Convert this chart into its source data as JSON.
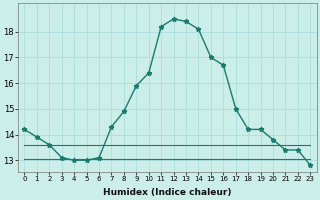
{
  "xlabel": "Humidex (Indice chaleur)",
  "background_color": "#cceee8",
  "grid_color": "#aadddd",
  "line_color": "#1a7a6e",
  "main_x": [
    0,
    1,
    2,
    3,
    4,
    5,
    6,
    7,
    8,
    9,
    10,
    11,
    12,
    13,
    14,
    15,
    16,
    17,
    18,
    19,
    20,
    21,
    22,
    23
  ],
  "main_y": [
    14.2,
    13.9,
    13.6,
    13.1,
    13.0,
    13.0,
    13.1,
    14.3,
    14.9,
    15.9,
    16.4,
    18.2,
    18.5,
    18.4,
    18.1,
    17.0,
    16.7,
    15.0,
    14.2,
    14.2,
    13.8,
    13.4,
    13.4,
    12.8
  ],
  "flat1_x": [
    0,
    1,
    2,
    3,
    4,
    5,
    6,
    7,
    8,
    9,
    10,
    11,
    12,
    13,
    14,
    15,
    16,
    17,
    18,
    19,
    20,
    21,
    22,
    23
  ],
  "flat1_y": [
    13.6,
    13.6,
    13.6,
    13.6,
    13.6,
    13.6,
    13.6,
    13.6,
    13.6,
    13.6,
    13.6,
    13.6,
    13.6,
    13.6,
    13.6,
    13.6,
    13.6,
    13.6,
    13.6,
    13.6,
    13.6,
    13.6,
    13.6,
    13.6
  ],
  "flat2_x": [
    0,
    1,
    2,
    3,
    4,
    5,
    6,
    7,
    8,
    9,
    10,
    11,
    12,
    13,
    14,
    15,
    16,
    17,
    18,
    19,
    20,
    21,
    22,
    23
  ],
  "flat2_y": [
    13.05,
    13.05,
    13.05,
    13.05,
    13.05,
    13.05,
    13.05,
    13.05,
    13.05,
    13.05,
    13.05,
    13.05,
    13.05,
    13.05,
    13.05,
    13.05,
    13.05,
    13.05,
    13.05,
    13.05,
    13.05,
    13.05,
    13.05,
    13.05
  ],
  "ylim": [
    12.55,
    19.1
  ],
  "yticks": [
    13,
    14,
    15,
    16,
    17,
    18
  ],
  "xticks": [
    0,
    1,
    2,
    3,
    4,
    5,
    6,
    7,
    8,
    9,
    10,
    11,
    12,
    13,
    14,
    15,
    16,
    17,
    18,
    19,
    20,
    21,
    22,
    23
  ]
}
